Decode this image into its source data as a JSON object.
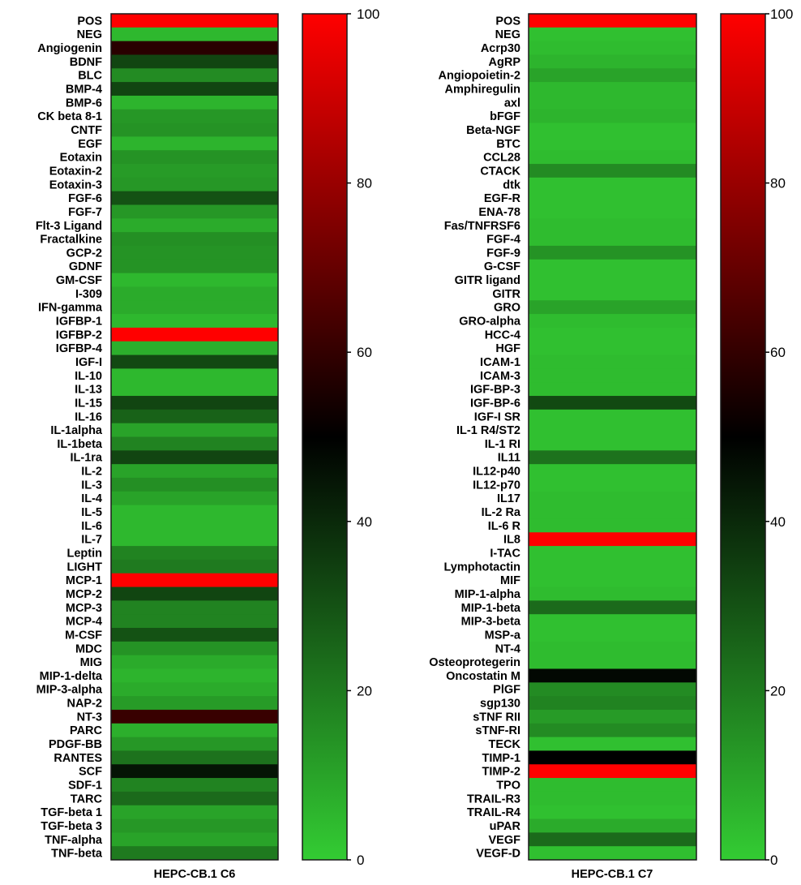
{
  "chart_data": [
    {
      "type": "heatmap",
      "xlabel": "HEPC-CB.1 C6",
      "color_scale": {
        "min": 0,
        "max": 100,
        "ticks": [
          0,
          20,
          40,
          60,
          80,
          100
        ],
        "tick_labels": [
          "0",
          "20",
          "40",
          "60",
          "80",
          "100"
        ],
        "colors": {
          "low": "#33cc33",
          "mid": "#000000",
          "high": "#ff0000"
        }
      },
      "rows": [
        "POS",
        "NEG",
        "Angiogenin",
        "BDNF",
        "BLC",
        "BMP-4",
        "BMP-6",
        "CK beta 8-1",
        "CNTF",
        "EGF",
        "Eotaxin",
        "Eotaxin-2",
        "Eotaxin-3",
        "FGF-6",
        "FGF-7",
        "Flt-3 Ligand",
        "Fractalkine",
        "GCP-2",
        "GDNF",
        "GM-CSF",
        "I-309",
        "IFN-gamma",
        "IGFBP-1",
        "IGFBP-2",
        "IGFBP-4",
        "IGF-I",
        "IL-10",
        "IL-13",
        "IL-15",
        "IL-16",
        "IL-1alpha",
        "IL-1beta",
        "IL-1ra",
        "IL-2",
        "IL-3",
        "IL-4",
        "IL-5",
        "IL-6",
        "IL-7",
        "Leptin",
        "LIGHT",
        "MCP-1",
        "MCP-2",
        "MCP-3",
        "MCP-4",
        "M-CSF",
        "MDC",
        "MIG",
        "MIP-1-delta",
        "MIP-3-alpha",
        "NAP-2",
        "NT-3",
        "PARC",
        "PDGF-BB",
        "RANTES",
        "SCF",
        "SDF-1",
        "TARC",
        "TGF-beta 1",
        "TGF-beta 3",
        "TNF-alpha",
        "TNF-beta"
      ],
      "values": [
        100,
        5,
        58,
        33,
        16,
        33,
        6,
        13,
        14,
        6,
        14,
        12,
        13,
        30,
        13,
        8,
        15,
        14,
        14,
        5,
        8,
        8,
        5,
        100,
        7,
        32,
        5,
        5,
        33,
        26,
        10,
        18,
        33,
        10,
        15,
        10,
        5,
        5,
        5,
        18,
        20,
        100,
        33,
        18,
        18,
        30,
        14,
        8,
        6,
        8,
        12,
        61,
        7,
        13,
        22,
        45,
        18,
        24,
        10,
        13,
        10,
        20
      ]
    },
    {
      "type": "heatmap",
      "xlabel": "HEPC-CB.1 C7",
      "color_scale": {
        "min": 0,
        "max": 100,
        "ticks": [
          0,
          20,
          40,
          60,
          80,
          100
        ],
        "tick_labels": [
          "0",
          "20",
          "40",
          "60",
          "80",
          "100"
        ],
        "colors": {
          "low": "#33cc33",
          "mid": "#000000",
          "high": "#ff0000"
        }
      },
      "rows": [
        "POS",
        "NEG",
        "Acrp30",
        "AgRP",
        "Angiopoietin-2",
        "Amphiregulin",
        "axl",
        "bFGF",
        "Beta-NGF",
        "BTC",
        "CCL28",
        "CTACK",
        "dtk",
        "EGF-R",
        "ENA-78",
        "Fas/TNFRSF6",
        "FGF-4",
        "FGF-9",
        "G-CSF",
        "GITR ligand",
        "GITR",
        "GRO",
        "GRO-alpha",
        "HCC-4",
        "HGF",
        "ICAM-1",
        "ICAM-3",
        "IGF-BP-3",
        "IGF-BP-6",
        "IGF-I SR",
        "IL-1 R4/ST2",
        "IL-1 RI",
        "IL11",
        "IL12-p40",
        "IL12-p70",
        "IL17",
        "IL-2 Ra",
        "IL-6 R",
        "IL8",
        "I-TAC",
        "Lymphotactin",
        "MIF",
        "MIP-1-alpha",
        "MIP-1-beta",
        "MIP-3-beta",
        "MSP-a",
        "NT-4",
        "Osteoprotegerin",
        "Oncostatin M",
        "PlGF",
        "sgp130",
        "sTNF RII",
        "sTNF-RI",
        "TECK",
        "TIMP-1",
        "TIMP-2",
        "TPO",
        "TRAIL-R3",
        "TRAIL-R4",
        "uPAR",
        "VEGF",
        "VEGF-D"
      ],
      "values": [
        100,
        3,
        4,
        6,
        10,
        5,
        5,
        6,
        3,
        3,
        4,
        16,
        3,
        3,
        3,
        4,
        4,
        14,
        3,
        3,
        3,
        10,
        4,
        3,
        3,
        4,
        4,
        4,
        32,
        3,
        3,
        3,
        22,
        3,
        3,
        4,
        4,
        4,
        100,
        3,
        3,
        3,
        4,
        24,
        3,
        3,
        4,
        4,
        48,
        16,
        18,
        12,
        16,
        3,
        50,
        100,
        4,
        4,
        3,
        8,
        24,
        3
      ]
    }
  ]
}
